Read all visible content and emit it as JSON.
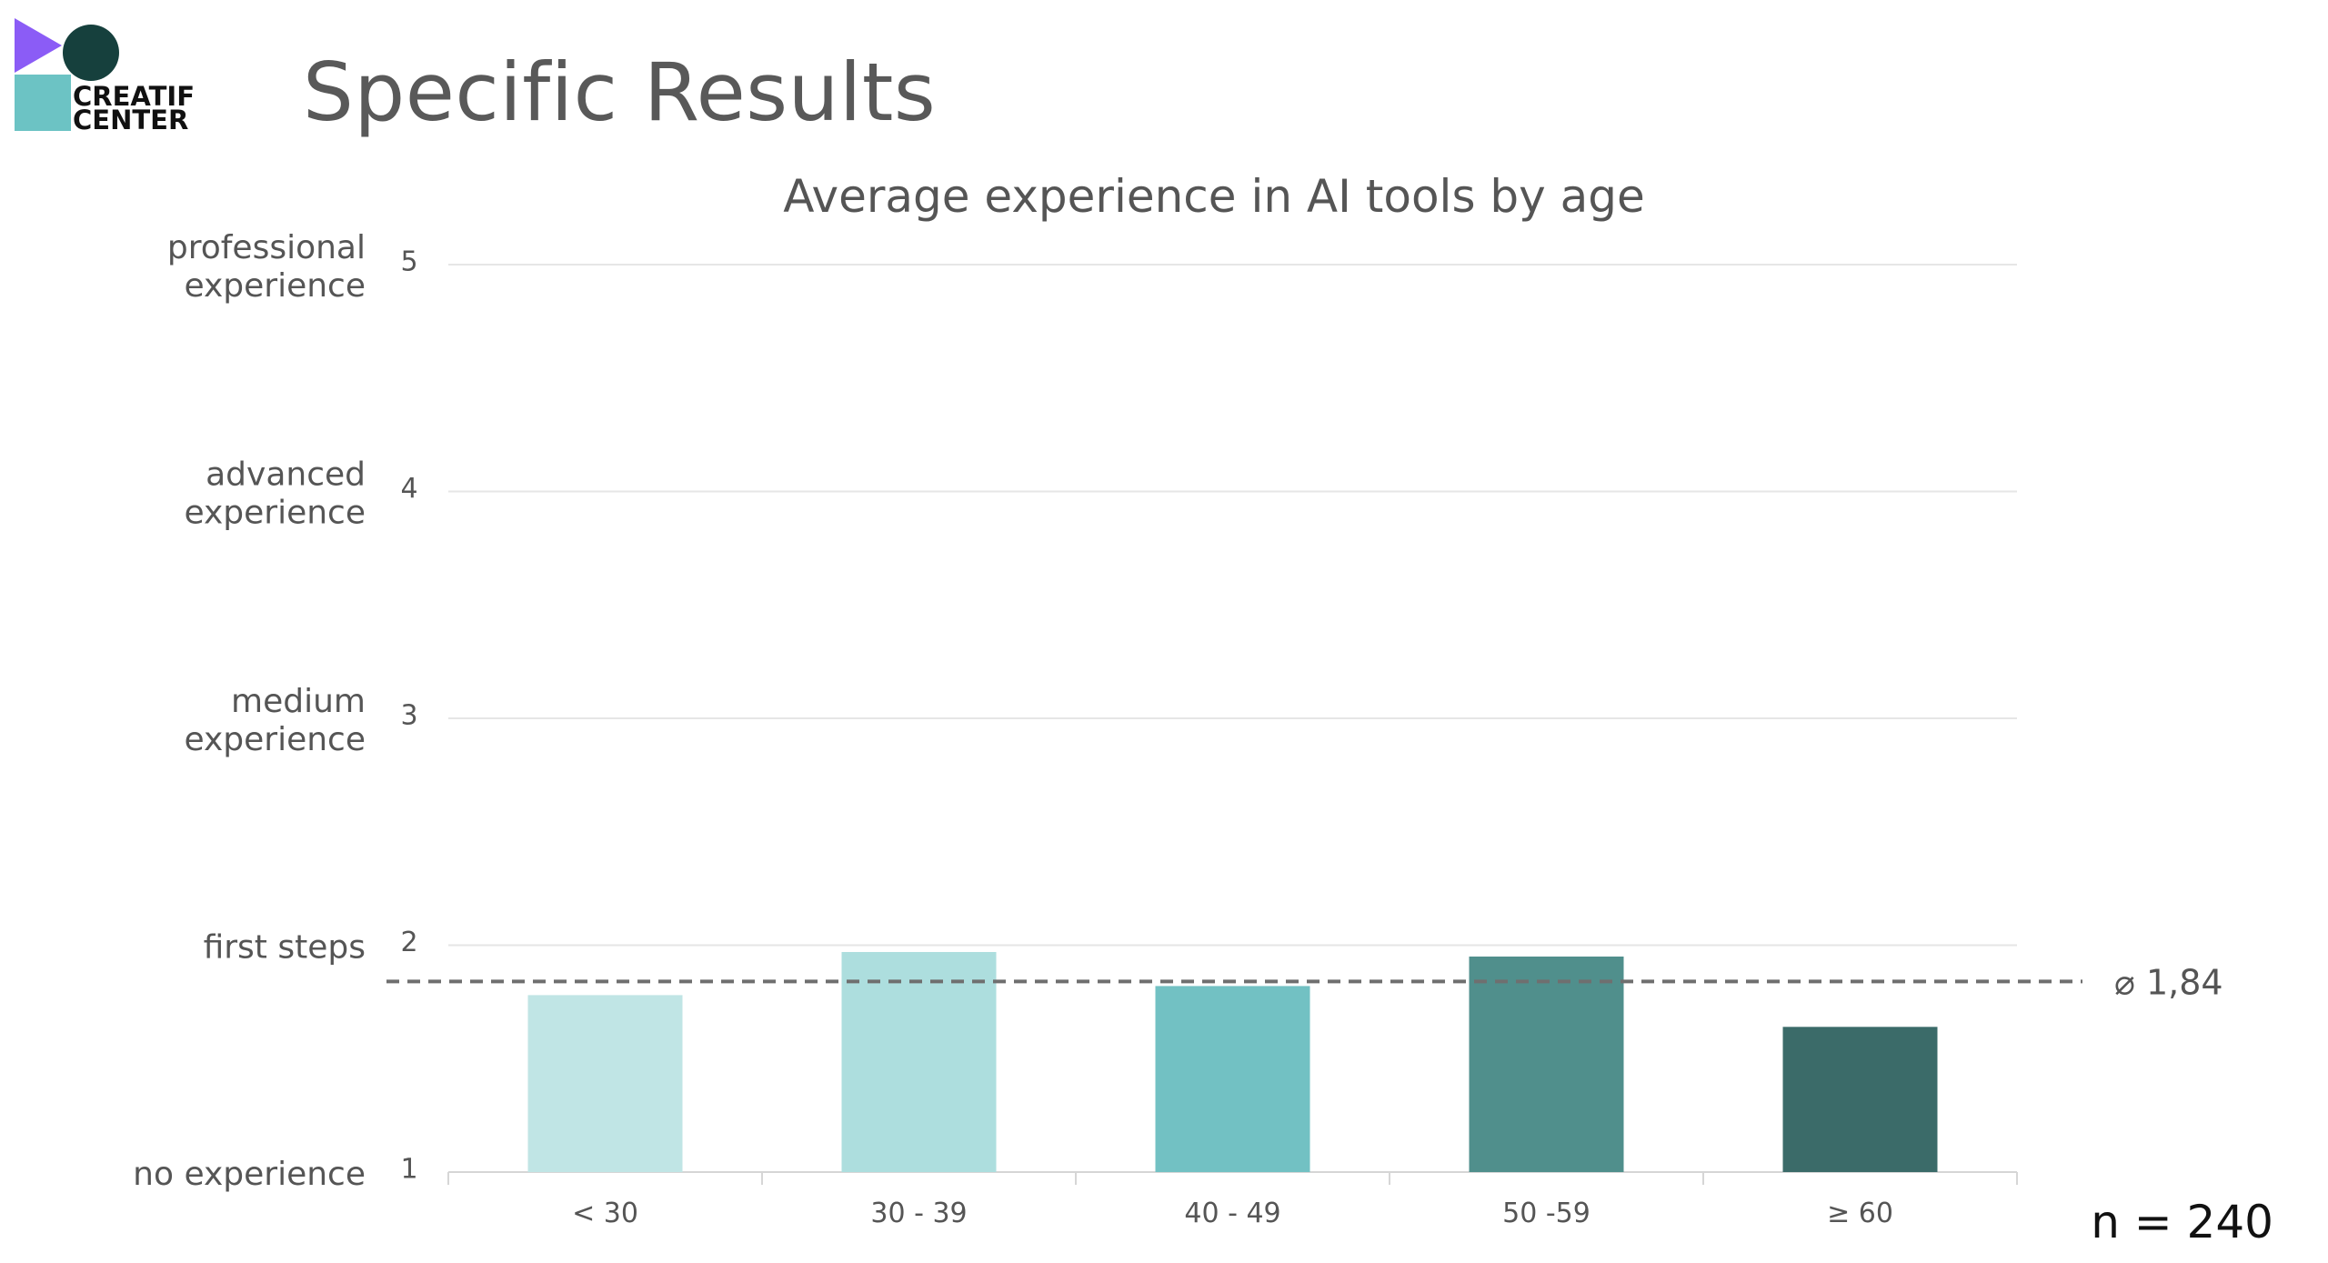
{
  "page": {
    "title": "Specific Results",
    "sample_size": "n = 240"
  },
  "logo": {
    "line1": "CREATIF",
    "line2": "CENTER",
    "colors": {
      "triangle": "#8B5CF6",
      "circle": "#16403D",
      "square": "#6CC3C4"
    }
  },
  "chart_data": {
    "type": "bar",
    "title": "Average experience in AI tools by age",
    "categories": [
      "< 30",
      "30 - 39",
      "40 - 49",
      "50 -59",
      "≥ 60"
    ],
    "values": [
      1.78,
      1.97,
      1.82,
      1.95,
      1.64
    ],
    "colors": [
      "#C0E5E5",
      "#ADDEDE",
      "#72C1C3",
      "#508F8C",
      "#3B6B69"
    ],
    "ylim": [
      1,
      5
    ],
    "yticks": [
      1,
      2,
      3,
      4,
      5
    ],
    "ytick_labels": [
      "1",
      "2",
      "3",
      "4",
      "5"
    ],
    "ylevel_labels": [
      [
        "no experience"
      ],
      [
        "first steps"
      ],
      [
        "medium",
        "experience"
      ],
      [
        "advanced",
        "experience"
      ],
      [
        "professional",
        "experience"
      ]
    ],
    "average": {
      "value": 1.84,
      "label": "⌀ 1,84",
      "style": "dashed"
    },
    "grid": true
  }
}
